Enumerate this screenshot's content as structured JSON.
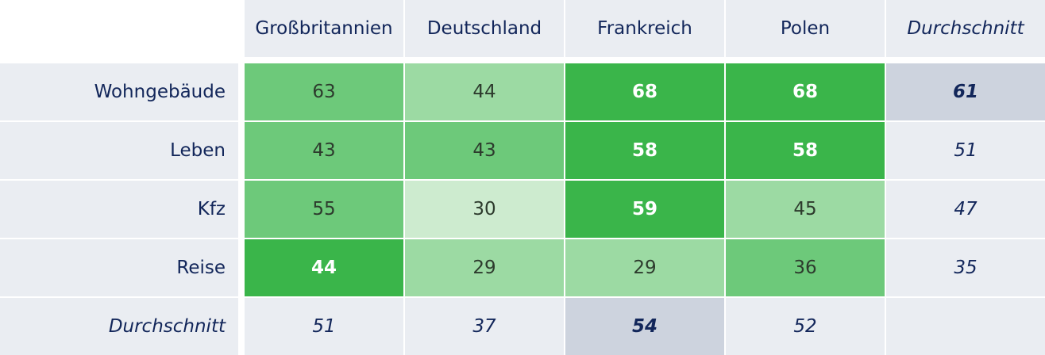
{
  "chart_data": {
    "type": "heatmap",
    "columns": [
      "Großbritannien",
      "Deutschland",
      "Frankreich",
      "Polen"
    ],
    "rows": [
      "Wohngebäude",
      "Leben",
      "Kfz",
      "Reise"
    ],
    "values": [
      [
        63,
        44,
        68,
        68
      ],
      [
        43,
        43,
        58,
        58
      ],
      [
        55,
        30,
        59,
        45
      ],
      [
        44,
        29,
        29,
        36
      ]
    ],
    "row_average_label": "Durchschnitt",
    "row_averages": [
      61,
      51,
      47,
      35
    ],
    "column_average_label": "Durchschnitt",
    "column_averages": [
      51,
      37,
      54,
      52
    ],
    "highlighted_row_average": 0,
    "highlighted_column_average": 2,
    "color_scale": {
      "very_light": "#cdebcf",
      "light": "#9cdaa3",
      "medium": "#6dc97a",
      "dark": "#3ab54a"
    },
    "cell_levels": [
      [
        "medium",
        "light",
        "dark",
        "dark"
      ],
      [
        "medium",
        "medium",
        "dark",
        "dark"
      ],
      [
        "medium",
        "very_light",
        "dark",
        "light"
      ],
      [
        "dark",
        "light",
        "light",
        "medium"
      ]
    ]
  }
}
